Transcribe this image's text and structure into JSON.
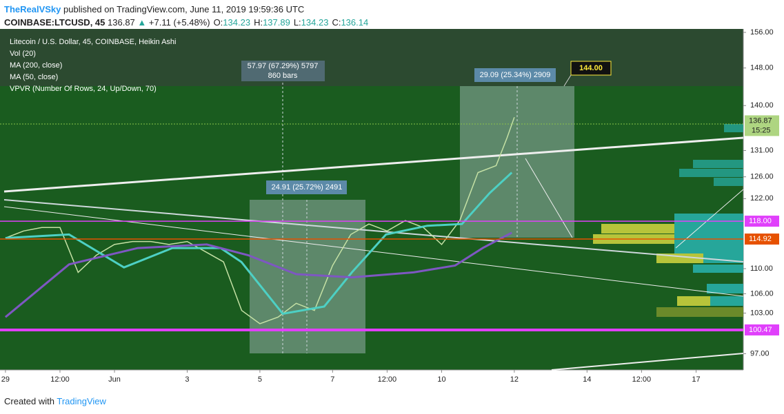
{
  "header": {
    "author": "TheRealVSky",
    "published": "published on TradingView.com, June 11, 2019 19:59:36 UTC",
    "symbol": "COINBASE:LTCUSD, 45",
    "price": 136.87,
    "arrow": "▲",
    "change": "+7.11 (+5.48%)",
    "ohlc": [
      {
        "label": "O:",
        "value": 134.23
      },
      {
        "label": "H:",
        "value": 137.89
      },
      {
        "label": "L:",
        "value": 134.23
      },
      {
        "label": "C:",
        "value": 136.14
      }
    ]
  },
  "footer": {
    "text": "Created with",
    "brand": "TradingView"
  },
  "chart_data": {
    "type": "line",
    "title": "Litecoin / U.S. Dollar, 45, COINBASE, Heikin Ashi",
    "indicators": [
      "Vol (20)",
      "MA (200, close)",
      "MA (50, close)",
      "VPVR (Number Of Rows, 24, Up/Down, 70)"
    ],
    "log_scale": true,
    "xlim": [
      -0.15,
      20.3
    ],
    "xticks": [
      {
        "value": 0,
        "label": "29"
      },
      {
        "value": 1.5,
        "label": "12:00"
      },
      {
        "value": 3,
        "label": "Jun"
      },
      {
        "value": 5,
        "label": "3"
      },
      {
        "value": 7,
        "label": "5"
      },
      {
        "value": 9,
        "label": "7"
      },
      {
        "value": 10.5,
        "label": "12:00"
      },
      {
        "value": 12,
        "label": "10"
      },
      {
        "value": 14,
        "label": "12"
      },
      {
        "value": 16,
        "label": "14"
      },
      {
        "value": 17.5,
        "label": "12:00"
      },
      {
        "value": 19,
        "label": "17"
      }
    ],
    "ylim": [
      94.7,
      156.8
    ],
    "yticks": [
      {
        "value": 156,
        "label": "156.00"
      },
      {
        "value": 148,
        "label": "148.00"
      },
      {
        "value": 140,
        "label": "140.00"
      },
      {
        "value": 131,
        "label": "131.00"
      },
      {
        "value": 126,
        "label": "126.00"
      },
      {
        "value": 122,
        "label": "122.00"
      },
      {
        "value": 110,
        "label": "110.00"
      },
      {
        "value": 106,
        "label": "106.00"
      },
      {
        "value": 103,
        "label": "103.00"
      },
      {
        "value": 97,
        "label": "97.00"
      }
    ],
    "series": [
      {
        "color": "#c5e1a5",
        "x": [
          0,
          0.5,
          1,
          1.5,
          2,
          2.5,
          3,
          3.5,
          4,
          4.5,
          5,
          5.5,
          6,
          6.5,
          7,
          7.5,
          8,
          8.5,
          9,
          9.5,
          10,
          10.5,
          11,
          11.5,
          12,
          12.5,
          13,
          13.5,
          13.8,
          14
        ],
        "values": [
          115.1,
          116.3,
          116.9,
          116.9,
          109.4,
          112.2,
          114.0,
          114.5,
          114.5,
          114.0,
          114.5,
          112.8,
          111.1,
          103.4,
          101.4,
          102.4,
          104.5,
          103.4,
          110.5,
          115.7,
          117.5,
          116.3,
          118.1,
          116.9,
          114.0,
          118.1,
          126.8,
          128.1,
          133.5,
          137.6
        ]
      },
      {
        "name": "MA (50, close)",
        "color": "#4dd0c4",
        "x": [
          0,
          1.75,
          3.26,
          4.59,
          5.92,
          6.49,
          7.63,
          8.77,
          9.53,
          10.47,
          11.61,
          12.56,
          13.32,
          13.93
        ],
        "values": [
          115.1,
          115.7,
          110.2,
          113.4,
          113.4,
          111.1,
          102.9,
          104.0,
          109.4,
          115.7,
          117.2,
          117.5,
          123.0,
          126.8
        ]
      },
      {
        "name": "MA (200, close)",
        "color": "#7e57c2",
        "x": [
          0,
          1.75,
          3.64,
          5.54,
          6.68,
          8.0,
          9.53,
          11.23,
          12.37,
          13.13,
          13.93
        ],
        "values": [
          102.4,
          110.7,
          113.4,
          114.0,
          112.2,
          109.1,
          108.6,
          109.4,
          110.5,
          113.4,
          116.0
        ]
      }
    ],
    "levels": [
      {
        "value": 118,
        "label": "118.00",
        "color": "#e040fb"
      },
      {
        "value": 114.92,
        "label": "114.92",
        "color": "#e65100"
      },
      {
        "value": 100.47,
        "label": "100.47",
        "color": "#e040fb"
      }
    ],
    "last_price": {
      "value": 136.87,
      "label": "136.87",
      "countdown": "15:25"
    },
    "annotations": [
      "57.97 (67.29%) 5797",
      "860 bars",
      "24.91 (25.72%) 2491",
      "29.09 (25.34%) 2909",
      "144.00"
    ]
  }
}
